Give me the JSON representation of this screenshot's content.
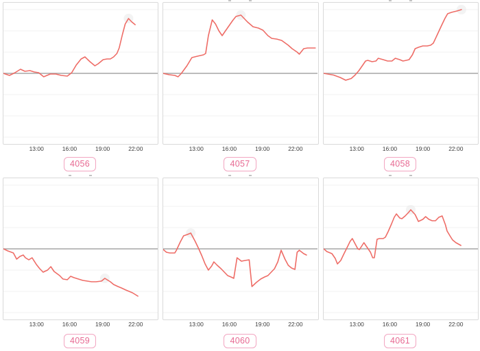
{
  "window": {
    "background": "#ffffff",
    "title": ""
  },
  "grid": {
    "rows": 2,
    "cols": 3
  },
  "axis": {
    "tick_labels": [
      "13:00",
      "16:00",
      "19:00",
      "22:00"
    ],
    "tick_hours": [
      13,
      16,
      19,
      22
    ],
    "x_domain_hours": [
      10,
      24
    ],
    "y_tick_labels_visible": false,
    "grid_on": true,
    "baseline_at_zero": true
  },
  "style": {
    "line_color": "#ee6c66",
    "zero_line_color": "#a6a6a6",
    "grid_color": "#f1f1f1",
    "box_border_color": "#d9d9d9",
    "badge_border_color": "#f2a5c1",
    "badge_text_color": "#e76992",
    "tick_text_color": "#3d3d3d",
    "halo_color": "#e9e9e9",
    "grid_step_units": 31
  },
  "badges": [
    "4056",
    "4057",
    "4058",
    "4059",
    "4060",
    "4061"
  ],
  "chart_data": [
    {
      "id": "4056",
      "type": "line",
      "title": "",
      "xlabel": "",
      "ylabel": "",
      "value_units": "relative to baseline (no y-axis labels shown)",
      "ylim": [
        -103,
        103
      ],
      "baseline": 0,
      "peak_marker_hour": 21.35,
      "title_clipped": false,
      "x_hours": [
        10.0,
        10.55,
        11.05,
        11.55,
        11.95,
        12.4,
        12.8,
        13.2,
        13.65,
        14.25,
        14.75,
        15.25,
        15.8,
        16.2,
        16.6,
        17.05,
        17.4,
        17.85,
        18.3,
        18.6,
        19.05,
        19.4,
        19.7,
        20.0,
        20.3,
        20.5,
        20.8,
        21.05,
        21.35,
        21.65,
        21.95
      ],
      "values": [
        0,
        -3,
        1,
        6,
        3,
        4,
        2,
        1,
        -5,
        -1,
        -1,
        -3,
        -4,
        1,
        12,
        21,
        24,
        17,
        11,
        14,
        20,
        21,
        21,
        24,
        29,
        37,
        57,
        72,
        80,
        75,
        71
      ]
    },
    {
      "id": "4057",
      "type": "line",
      "title": "",
      "xlabel": "",
      "ylabel": "",
      "value_units": "relative to baseline (no y-axis labels shown)",
      "ylim": [
        -103,
        103
      ],
      "baseline": 0,
      "peak_marker_hour": 17.05,
      "title_clipped": true,
      "x_hours": [
        10.0,
        10.55,
        11.05,
        11.35,
        11.65,
        12.15,
        12.6,
        13.1,
        13.65,
        13.85,
        14.1,
        14.45,
        14.75,
        15.05,
        15.35,
        15.65,
        16.0,
        16.3,
        16.6,
        17.05,
        17.35,
        17.65,
        18.15,
        18.65,
        19.05,
        19.5,
        19.85,
        20.3,
        20.75,
        21.35,
        21.7,
        22.15,
        22.35,
        22.75,
        23.1,
        23.8
      ],
      "values": [
        0,
        -2,
        -3,
        -5,
        0,
        11,
        23,
        25,
        27,
        29,
        55,
        78,
        72,
        62,
        55,
        62,
        70,
        77,
        83,
        85,
        80,
        75,
        68,
        66,
        63,
        55,
        51,
        50,
        48,
        41,
        36,
        31,
        28,
        36,
        37,
        37
      ]
    },
    {
      "id": "4058",
      "type": "line",
      "title": "",
      "xlabel": "",
      "ylabel": "",
      "value_units": "relative to baseline (no y-axis labels shown)",
      "ylim": [
        -103,
        103
      ],
      "baseline": 0,
      "peak_marker_hour": 22.5,
      "title_clipped": true,
      "x_hours": [
        10.0,
        10.9,
        11.5,
        12.0,
        12.5,
        12.85,
        13.2,
        13.5,
        13.8,
        14.0,
        14.4,
        14.75,
        14.95,
        15.4,
        15.8,
        16.2,
        16.5,
        16.9,
        17.2,
        17.5,
        17.75,
        18.05,
        18.3,
        18.6,
        19.0,
        19.4,
        19.7,
        19.95,
        20.3,
        20.7,
        21.0,
        21.25,
        21.6,
        22.1,
        22.5
      ],
      "values": [
        0,
        -2.5,
        -6,
        -10,
        -7.5,
        -2.5,
        4,
        11,
        18,
        19,
        17,
        18,
        22,
        20,
        18,
        18,
        22,
        20,
        18,
        19,
        20,
        27,
        36,
        38,
        40,
        40,
        41,
        44,
        56,
        70,
        80,
        87,
        89,
        91,
        93
      ]
    },
    {
      "id": "4059",
      "type": "line",
      "title": "",
      "xlabel": "",
      "ylabel": "",
      "value_units": "relative to baseline (no y-axis labels shown)",
      "ylim": [
        -103,
        103
      ],
      "baseline": 0,
      "peak_marker_hour": 19.2,
      "title_clipped": true,
      "x_hours": [
        10.0,
        10.4,
        10.9,
        11.2,
        11.5,
        11.8,
        12.0,
        12.3,
        12.6,
        13.0,
        13.3,
        13.6,
        14.0,
        14.3,
        14.6,
        15.1,
        15.4,
        15.8,
        16.1,
        16.4,
        16.8,
        17.2,
        17.6,
        18.0,
        18.4,
        18.9,
        19.2,
        19.7,
        20.0,
        20.4,
        20.7,
        21.1,
        21.4,
        21.7,
        22.0,
        22.2
      ],
      "values": [
        0,
        -3,
        -6,
        -15,
        -11,
        -9,
        -13,
        -16,
        -13,
        -23,
        -29,
        -34,
        -31,
        -26,
        -33,
        -39,
        -44,
        -45,
        -40,
        -42,
        -44,
        -46,
        -47,
        -48,
        -48,
        -47,
        -43,
        -48,
        -52,
        -55,
        -57,
        -60,
        -62,
        -64,
        -67,
        -69
      ]
    },
    {
      "id": "4060",
      "type": "line",
      "title": "",
      "xlabel": "",
      "ylabel": "",
      "value_units": "relative to baseline (no y-axis labels shown)",
      "ylim": [
        -103,
        103
      ],
      "baseline": 0,
      "peak_marker_hour": 12.5,
      "title_clipped": true,
      "x_hours": [
        10.0,
        10.3,
        10.6,
        11.05,
        11.2,
        11.55,
        11.85,
        12.2,
        12.5,
        12.9,
        13.2,
        13.5,
        13.8,
        14.1,
        14.4,
        14.6,
        14.9,
        15.25,
        15.55,
        15.85,
        16.15,
        16.4,
        16.7,
        17.1,
        17.4,
        17.8,
        18.05,
        18.45,
        18.85,
        19.2,
        19.5,
        19.8,
        20.1,
        20.4,
        20.7,
        21.05,
        21.35,
        21.65,
        21.95,
        22.15,
        22.35,
        22.75,
        23.0
      ],
      "values": [
        -1,
        -5,
        -6,
        -6,
        -2,
        10,
        19,
        21,
        23,
        11,
        1,
        -10,
        -22,
        -31,
        -25,
        -19,
        -24,
        -29,
        -34,
        -39,
        -41,
        -43,
        -13,
        -18,
        -17,
        -16,
        -55,
        -49,
        -44,
        -41,
        -39,
        -34,
        -29,
        -19,
        -2,
        -15,
        -24,
        -28,
        -30,
        -5,
        -2,
        -7,
        -9
      ]
    },
    {
      "id": "4061",
      "type": "line",
      "title": "",
      "xlabel": "",
      "ylabel": "",
      "value_units": "relative to baseline (no y-axis labels shown)",
      "ylim": [
        -103,
        103
      ],
      "baseline": 0,
      "peak_marker_hour": 17.9,
      "title_clipped": true,
      "x_hours": [
        10.0,
        10.3,
        10.75,
        11.05,
        11.25,
        11.55,
        11.85,
        12.1,
        12.4,
        12.6,
        12.9,
        13.1,
        13.25,
        13.65,
        13.95,
        14.25,
        14.45,
        14.6,
        14.85,
        15.05,
        15.4,
        15.6,
        15.85,
        16.15,
        16.4,
        16.6,
        16.9,
        17.1,
        17.4,
        17.7,
        17.9,
        18.3,
        18.6,
        19.0,
        19.25,
        19.55,
        19.85,
        20.15,
        20.45,
        20.75,
        21.05,
        21.2,
        21.5,
        21.7,
        22.0,
        22.45
      ],
      "values": [
        0,
        -4,
        -7,
        -14,
        -22,
        -17,
        -7,
        1,
        11,
        15,
        6,
        0,
        -1,
        9,
        2,
        -5,
        -13,
        -13,
        14,
        15,
        15,
        17,
        25,
        36,
        46,
        51,
        45,
        44,
        48,
        53,
        57,
        50,
        40,
        43,
        47,
        43,
        41,
        41,
        46,
        48,
        35,
        26,
        18,
        13,
        9,
        5
      ]
    }
  ]
}
